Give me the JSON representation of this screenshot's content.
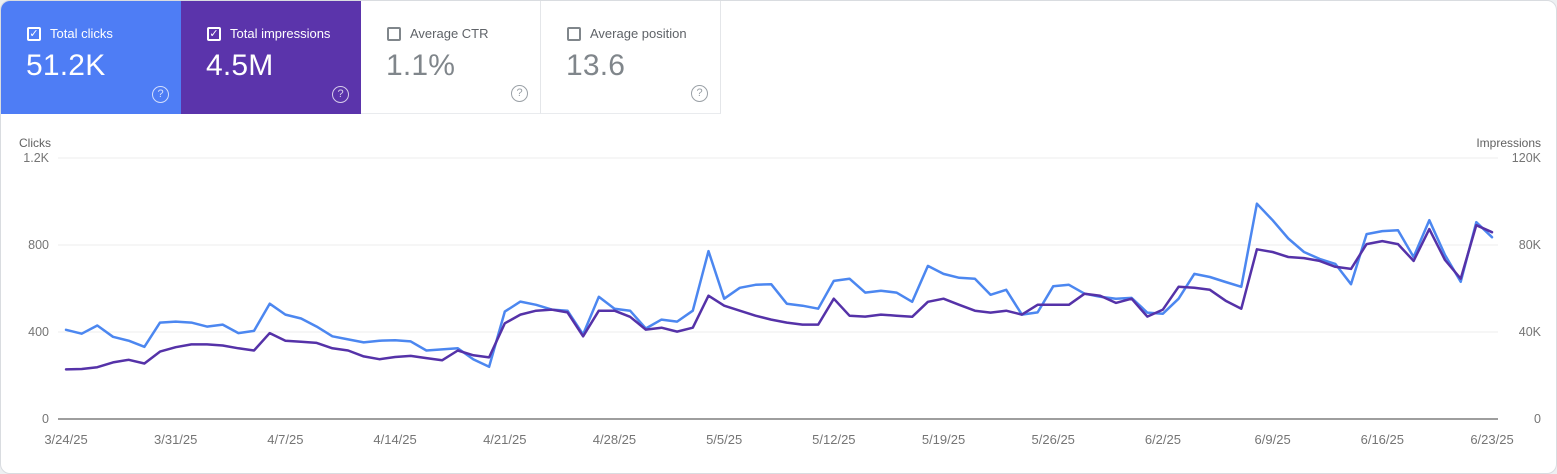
{
  "icons": {
    "help": "?",
    "check": "✓"
  },
  "cards": [
    {
      "id": "total-clicks",
      "label": "Total clicks",
      "value": "51.2K",
      "checked": true,
      "bg": "#4e7df5"
    },
    {
      "id": "total-impressions",
      "label": "Total impressions",
      "value": "4.5M",
      "checked": true,
      "bg": "#5b34ab"
    },
    {
      "id": "average-ctr",
      "label": "Average CTR",
      "value": "1.1%",
      "checked": false,
      "bg": null
    },
    {
      "id": "average-position",
      "label": "Average position",
      "value": "13.6",
      "checked": false,
      "bg": null
    }
  ],
  "chart_data": {
    "type": "line",
    "grid": "horizontal",
    "x": [
      "3/24/25",
      "3/25/25",
      "3/26/25",
      "3/27/25",
      "3/28/25",
      "3/29/25",
      "3/30/25",
      "3/31/25",
      "4/1/25",
      "4/2/25",
      "4/3/25",
      "4/4/25",
      "4/5/25",
      "4/6/25",
      "4/7/25",
      "4/8/25",
      "4/9/25",
      "4/10/25",
      "4/11/25",
      "4/12/25",
      "4/13/25",
      "4/14/25",
      "4/15/25",
      "4/16/25",
      "4/17/25",
      "4/18/25",
      "4/19/25",
      "4/20/25",
      "4/21/25",
      "4/22/25",
      "4/23/25",
      "4/24/25",
      "4/25/25",
      "4/26/25",
      "4/27/25",
      "4/28/25",
      "4/29/25",
      "4/30/25",
      "5/1/25",
      "5/2/25",
      "5/3/25",
      "5/4/25",
      "5/5/25",
      "5/6/25",
      "5/7/25",
      "5/8/25",
      "5/9/25",
      "5/10/25",
      "5/11/25",
      "5/12/25",
      "5/13/25",
      "5/14/25",
      "5/15/25",
      "5/16/25",
      "5/17/25",
      "5/18/25",
      "5/19/25",
      "5/20/25",
      "5/21/25",
      "5/22/25",
      "5/23/25",
      "5/24/25",
      "5/25/25",
      "5/26/25",
      "5/27/25",
      "5/28/25",
      "5/29/25",
      "5/30/25",
      "5/31/25",
      "6/1/25",
      "6/2/25",
      "6/3/25",
      "6/4/25",
      "6/5/25",
      "6/6/25",
      "6/7/25",
      "6/8/25",
      "6/9/25",
      "6/10/25",
      "6/11/25",
      "6/12/25",
      "6/13/25",
      "6/14/25",
      "6/15/25",
      "6/16/25",
      "6/17/25",
      "6/18/25",
      "6/19/25",
      "6/20/25",
      "6/21/25",
      "6/22/25",
      "6/23/25"
    ],
    "series": [
      {
        "name": "Total clicks",
        "axis": "left",
        "color": "#4c87f0",
        "values": [
          410,
          392,
          430,
          378,
          360,
          332,
          443,
          448,
          443,
          425,
          434,
          395,
          405,
          530,
          480,
          462,
          425,
          380,
          366,
          352,
          360,
          362,
          357,
          315,
          320,
          325,
          274,
          240,
          494,
          540,
          525,
          503,
          498,
          389,
          562,
          507,
          498,
          416,
          457,
          448,
          498,
          772,
          553,
          603,
          617,
          620,
          530,
          521,
          507,
          635,
          645,
          581,
          590,
          581,
          539,
          704,
          667,
          649,
          645,
          571,
          594,
          480,
          490,
          610,
          617,
          576,
          562,
          553,
          557,
          489,
          484,
          553,
          667,
          653,
          630,
          608,
          990,
          914,
          830,
          768,
          736,
          713,
          620,
          850,
          864,
          868,
          745,
          914,
          754,
          631,
          905,
          836
        ]
      },
      {
        "name": "Total impressions",
        "axis": "right",
        "color": "#5532a8",
        "values": [
          22800,
          23000,
          23800,
          26000,
          27200,
          25500,
          31000,
          33000,
          34300,
          34300,
          33800,
          32500,
          31500,
          39500,
          36000,
          35500,
          35000,
          32500,
          31500,
          28800,
          27500,
          28500,
          29000,
          28000,
          27000,
          31500,
          29300,
          28300,
          44000,
          48000,
          49800,
          50300,
          49000,
          38000,
          49800,
          49800,
          47000,
          41100,
          42000,
          40200,
          42000,
          56700,
          52100,
          49800,
          47500,
          45700,
          44300,
          43400,
          43400,
          55300,
          47500,
          47100,
          48000,
          47500,
          47000,
          53900,
          55300,
          52500,
          49800,
          48900,
          49800,
          48000,
          52500,
          52500,
          52500,
          57600,
          56700,
          53400,
          55300,
          47100,
          50300,
          60800,
          60300,
          59400,
          54400,
          50700,
          78000,
          76800,
          74500,
          74000,
          72700,
          70000,
          69000,
          80400,
          81800,
          80400,
          72700,
          87300,
          73100,
          64500,
          89100,
          85900
        ]
      }
    ],
    "left_axis": {
      "title": "Clicks",
      "ticks": [
        "0",
        "400",
        "800",
        "1.2K"
      ],
      "tick_values": [
        0,
        400,
        800,
        1200
      ],
      "range": [
        0,
        1200
      ]
    },
    "right_axis": {
      "title": "Impressions",
      "ticks": [
        "0",
        "40K",
        "80K",
        "120K"
      ],
      "tick_values": [
        0,
        40000,
        80000,
        120000
      ],
      "range": [
        0,
        120000
      ]
    },
    "x_tick_labels": [
      "3/24/25",
      "3/31/25",
      "4/7/25",
      "4/14/25",
      "4/21/25",
      "4/28/25",
      "5/5/25",
      "5/12/25",
      "5/19/25",
      "5/26/25",
      "6/2/25",
      "6/9/25",
      "6/16/25",
      "6/23/25"
    ]
  }
}
